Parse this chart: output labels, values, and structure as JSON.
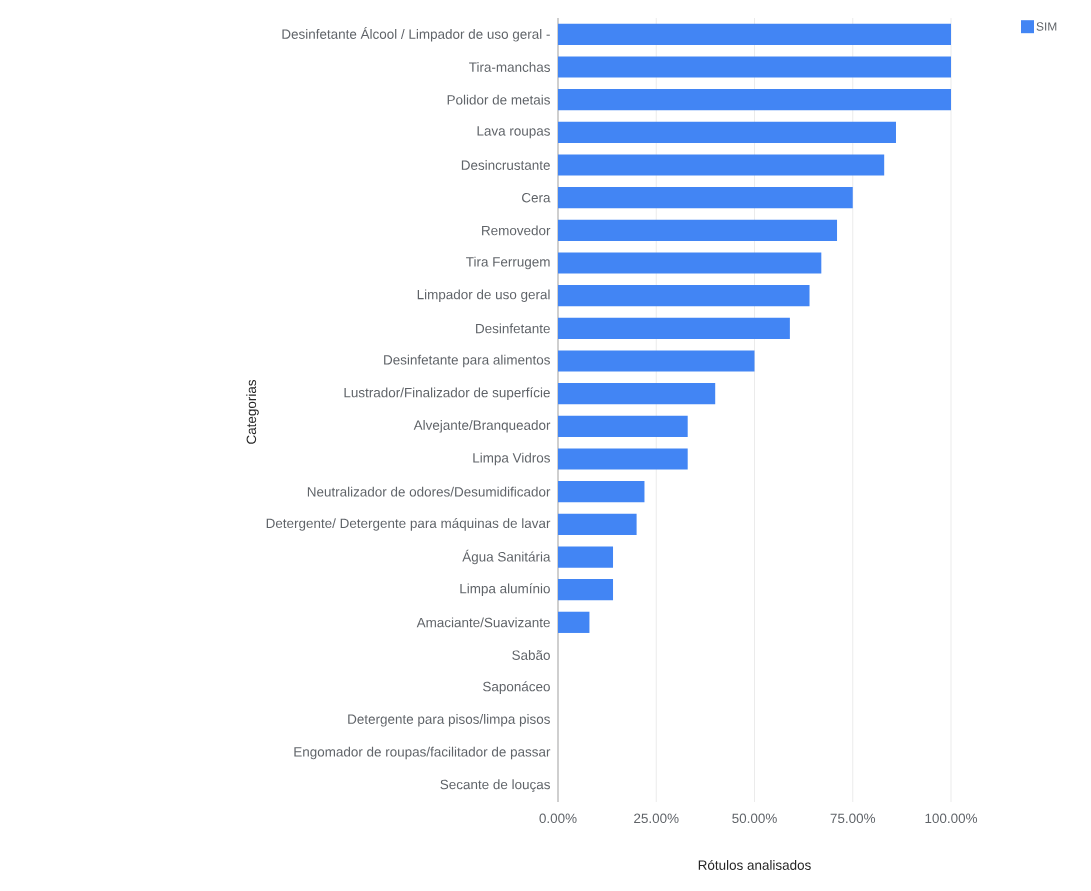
{
  "chart_data": {
    "type": "bar",
    "orientation": "horizontal",
    "xlabel": "Rótulos analisados",
    "ylabel": "Categorias",
    "categories": [
      "Desinfetante Álcool / Limpador de uso geral -",
      "Tira-manchas",
      "Polidor de metais",
      "Lava roupas",
      "Desincrustante",
      "Cera",
      "Removedor",
      "Tira Ferrugem",
      "Limpador de uso geral",
      "Desinfetante",
      "Desinfetante para alimentos",
      "Lustrador/Finalizador de superfície",
      "Alvejante/Branqueador",
      "Limpa Vidros",
      "Neutralizador de odores/Desumidificador",
      "Detergente/ Detergente para máquinas de lavar",
      "Água Sanitária",
      "Limpa alumínio",
      "Amaciante/Suavizante",
      "Sabão",
      "Saponáceo",
      "Detergente para pisos/limpa pisos",
      "Engomador de roupas/facilitador de passar",
      "Secante de louças"
    ],
    "series": [
      {
        "name": "SIM",
        "color": "#4285f4",
        "values": [
          100,
          100,
          100,
          86,
          83,
          75,
          71,
          67,
          64,
          59,
          50,
          40,
          33,
          33,
          22,
          20,
          14,
          14,
          8,
          0,
          0,
          0,
          0,
          0
        ]
      }
    ],
    "xlim": [
      0,
      100
    ],
    "xticks": [
      {
        "value": 0,
        "label": "0.00%"
      },
      {
        "value": 25,
        "label": "25.00%"
      },
      {
        "value": 50,
        "label": "50.00%"
      },
      {
        "value": 75,
        "label": "75.00%"
      },
      {
        "value": 100,
        "label": "100.00%"
      }
    ],
    "grid": "x",
    "legend": "top right"
  }
}
